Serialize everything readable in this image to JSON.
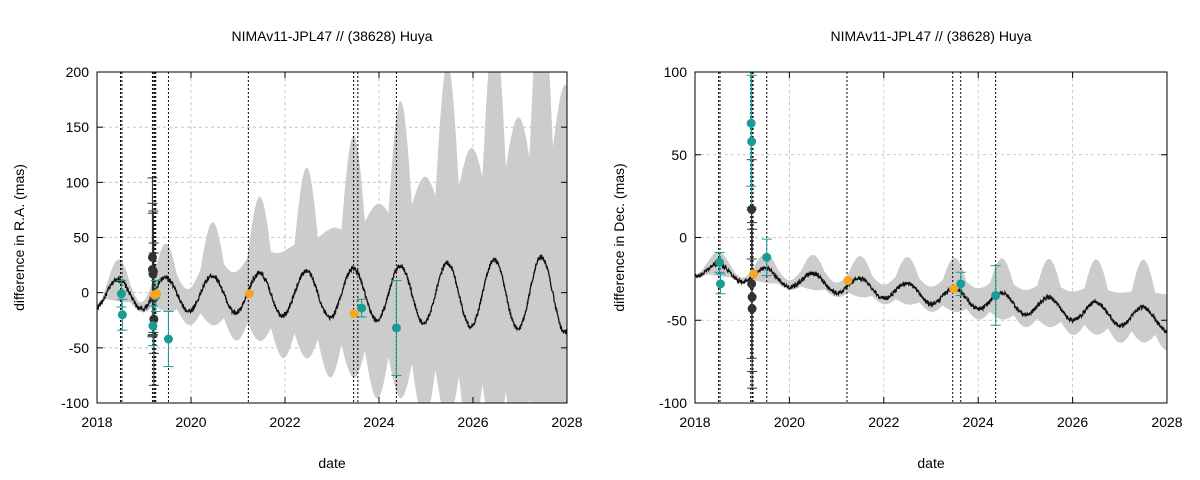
{
  "chart_data": [
    {
      "type": "line",
      "title": "NIMAv11-JPL47 // (38628) Huya",
      "xlabel": "date",
      "ylabel": "difference in R.A. (mas)",
      "xlim": [
        2018,
        2028
      ],
      "ylim": [
        -100,
        200
      ],
      "xticks": [
        2018,
        2020,
        2022,
        2024,
        2026,
        2028
      ],
      "xtick_labels": [
        "2018",
        "2020",
        "2022",
        "2024",
        "2026",
        "2028"
      ],
      "yticks": [
        -100,
        -50,
        0,
        50,
        100,
        150,
        200
      ],
      "ytick_labels": [
        "-100",
        "-50",
        "0",
        "50",
        "100",
        "150",
        "200"
      ],
      "grid": true,
      "model": {
        "center": -1,
        "amplitude": 13,
        "amp_growth": 1.1,
        "growth_exp": 1.3,
        "phase_offset": 0.2,
        "band_base": 7,
        "band_growth": 8.5,
        "band_exp": 1.45,
        "band_trend": -2.2,
        "noise": 2.2
      },
      "event_dates": [
        2018.5,
        2018.53,
        2019.18,
        2019.21,
        2019.23,
        2019.25,
        2019.52,
        2021.22,
        2023.46,
        2023.55,
        2024.37
      ],
      "points_teal": [
        {
          "x": 2018.52,
          "y": -1,
          "err": 12
        },
        {
          "x": 2018.54,
          "y": -20,
          "err": 14
        },
        {
          "x": 2019.19,
          "y": -30,
          "err": 18
        },
        {
          "x": 2019.25,
          "y": -3,
          "err": 14
        },
        {
          "x": 2019.52,
          "y": -42,
          "err": 25
        },
        {
          "x": 2023.63,
          "y": -14,
          "err": 8
        },
        {
          "x": 2024.37,
          "y": -32,
          "err": 43
        }
      ],
      "points_orange": [
        {
          "x": 2019.22,
          "y": -2
        },
        {
          "x": 2019.27,
          "y": -1
        },
        {
          "x": 2021.24,
          "y": -1
        },
        {
          "x": 2023.47,
          "y": -19
        }
      ],
      "points_dark": [
        {
          "x": 2019.18,
          "y": 32,
          "err": 72
        },
        {
          "x": 2019.18,
          "y": 21,
          "err": 60
        },
        {
          "x": 2019.19,
          "y": 17,
          "err": 55
        },
        {
          "x": 2019.2,
          "y": 19,
          "err": 55
        },
        {
          "x": 2019.21,
          "y": -24,
          "err": 60
        },
        {
          "x": 2019.21,
          "y": -5,
          "err": 50
        }
      ],
      "colors": {
        "band": "#cccccc",
        "line": "#111111",
        "teal": "#1a9b95",
        "orange": "#f5a623",
        "dark": "#333333"
      }
    },
    {
      "type": "line",
      "title": "NIMAv11-JPL47 // (38628) Huya",
      "xlabel": "date",
      "ylabel": "difference in Dec. (mas)",
      "xlim": [
        2018,
        2028
      ],
      "ylim": [
        -100,
        100
      ],
      "xticks": [
        2018,
        2020,
        2022,
        2024,
        2026,
        2028
      ],
      "xtick_labels": [
        "2018",
        "2020",
        "2022",
        "2024",
        "2026",
        "2028"
      ],
      "yticks": [
        -100,
        -50,
        0,
        50,
        100
      ],
      "ytick_labels": [
        "-100",
        "-50",
        "0",
        "50",
        "100"
      ],
      "grid": true,
      "model": {
        "center_start": -19,
        "center_slope": -3.1,
        "amplitude": 4.5,
        "amp_growth": 0.2,
        "growth_exp": 1.0,
        "phase_offset": 0.25,
        "band_base": 4,
        "band_growth": 1.4,
        "band_exp": 1.2,
        "band_trend": 0,
        "noise": 1.2
      },
      "event_dates": [
        2018.5,
        2018.53,
        2019.18,
        2019.21,
        2019.23,
        2019.52,
        2021.22,
        2023.46,
        2023.63,
        2024.37
      ],
      "points_teal": [
        {
          "x": 2018.52,
          "y": -15,
          "err": 6
        },
        {
          "x": 2018.54,
          "y": -28,
          "err": 6
        },
        {
          "x": 2019.19,
          "y": 69,
          "err": 38
        },
        {
          "x": 2019.2,
          "y": 58,
          "err": 40
        },
        {
          "x": 2019.52,
          "y": -12,
          "err": 11
        },
        {
          "x": 2023.63,
          "y": -28,
          "err": 7
        },
        {
          "x": 2024.37,
          "y": -35,
          "err": 18
        }
      ],
      "points_orange": [
        {
          "x": 2019.24,
          "y": -22
        },
        {
          "x": 2021.24,
          "y": -26
        },
        {
          "x": 2023.48,
          "y": -31
        }
      ],
      "points_dark": [
        {
          "x": 2019.2,
          "y": 17,
          "err": 30
        },
        {
          "x": 2019.2,
          "y": -28,
          "err": 45
        },
        {
          "x": 2019.21,
          "y": -36,
          "err": 45
        },
        {
          "x": 2019.21,
          "y": -43,
          "err": 48
        }
      ],
      "colors": {
        "band": "#cccccc",
        "line": "#111111",
        "teal": "#1a9b95",
        "orange": "#f5a623",
        "dark": "#333333"
      }
    }
  ]
}
